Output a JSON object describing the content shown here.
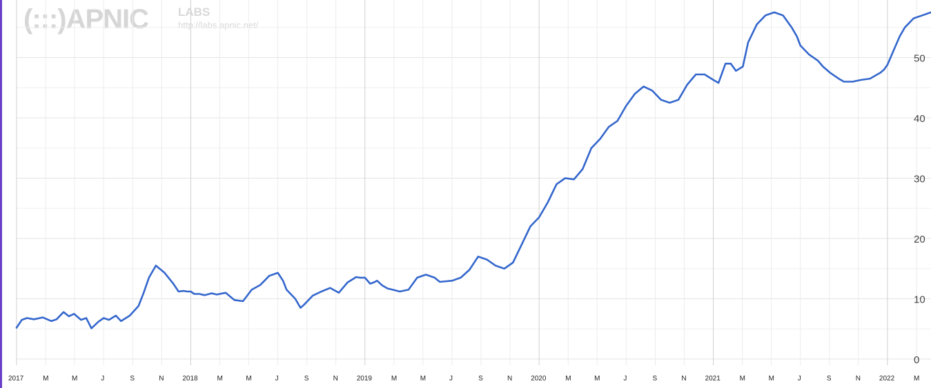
{
  "watermark": {
    "logo": "(:::)APNIC",
    "labs": "LABS",
    "url": "http://labs.apnic.net/"
  },
  "colors": {
    "line": "#3366cc",
    "grid": "#e6e6e6",
    "major_grid": "#cccccc",
    "border": "#6a3fc8"
  },
  "chart_data": {
    "type": "line",
    "title": "",
    "xlabel": "",
    "ylabel": "",
    "xlim": [
      2017.0,
      2022.25
    ],
    "ylim": [
      0,
      57
    ],
    "grid": true,
    "x_ticks": [
      {
        "value": 2017.0,
        "label": "2017"
      },
      {
        "value": 2017.167,
        "label": "M"
      },
      {
        "value": 2017.333,
        "label": "M"
      },
      {
        "value": 2017.5,
        "label": "J"
      },
      {
        "value": 2017.667,
        "label": "S"
      },
      {
        "value": 2017.833,
        "label": "N"
      },
      {
        "value": 2018.0,
        "label": "2018"
      },
      {
        "value": 2018.167,
        "label": "M"
      },
      {
        "value": 2018.333,
        "label": "M"
      },
      {
        "value": 2018.5,
        "label": "J"
      },
      {
        "value": 2018.667,
        "label": "S"
      },
      {
        "value": 2018.833,
        "label": "N"
      },
      {
        "value": 2019.0,
        "label": "2019"
      },
      {
        "value": 2019.167,
        "label": "M"
      },
      {
        "value": 2019.333,
        "label": "M"
      },
      {
        "value": 2019.5,
        "label": "J"
      },
      {
        "value": 2019.667,
        "label": "S"
      },
      {
        "value": 2019.833,
        "label": "N"
      },
      {
        "value": 2020.0,
        "label": "2020"
      },
      {
        "value": 2020.167,
        "label": "M"
      },
      {
        "value": 2020.333,
        "label": "M"
      },
      {
        "value": 2020.5,
        "label": "J"
      },
      {
        "value": 2020.667,
        "label": "S"
      },
      {
        "value": 2020.833,
        "label": "N"
      },
      {
        "value": 2021.0,
        "label": "2021"
      },
      {
        "value": 2021.167,
        "label": "M"
      },
      {
        "value": 2021.333,
        "label": "M"
      },
      {
        "value": 2021.5,
        "label": "J"
      },
      {
        "value": 2021.667,
        "label": "S"
      },
      {
        "value": 2021.833,
        "label": "N"
      },
      {
        "value": 2022.0,
        "label": "2022"
      },
      {
        "value": 2022.167,
        "label": "M"
      }
    ],
    "y_ticks": [
      {
        "value": 0,
        "label": "0"
      },
      {
        "value": 10,
        "label": "10"
      },
      {
        "value": 20,
        "label": "20"
      },
      {
        "value": 30,
        "label": "30"
      },
      {
        "value": 40,
        "label": "40"
      },
      {
        "value": 50,
        "label": "50"
      }
    ],
    "series": [
      {
        "x": [
          2017.0,
          2017.03,
          2017.06,
          2017.1,
          2017.15,
          2017.2,
          2017.23,
          2017.27,
          2017.3,
          2017.33,
          2017.37,
          2017.4,
          2017.43,
          2017.47,
          2017.5,
          2017.53,
          2017.57,
          2017.6,
          2017.65,
          2017.7,
          2017.73,
          2017.76,
          2017.8,
          2017.85,
          2017.9,
          2017.93,
          2017.96,
          2017.98,
          2018.0,
          2018.02,
          2018.05,
          2018.08,
          2018.12,
          2018.15,
          2018.2,
          2018.25,
          2018.3,
          2018.35,
          2018.4,
          2018.45,
          2018.5,
          2018.53,
          2018.55,
          2018.6,
          2018.63,
          2018.65,
          2018.7,
          2018.75,
          2018.8,
          2018.85,
          2018.9,
          2018.95,
          2018.97,
          2019.0,
          2019.03,
          2019.05,
          2019.07,
          2019.1,
          2019.13,
          2019.16,
          2019.2,
          2019.25,
          2019.3,
          2019.35,
          2019.4,
          2019.43,
          2019.5,
          2019.55,
          2019.6,
          2019.65,
          2019.7,
          2019.75,
          2019.8,
          2019.85,
          2019.9,
          2019.95,
          2020.0,
          2020.05,
          2020.1,
          2020.15,
          2020.2,
          2020.25,
          2020.3,
          2020.35,
          2020.4,
          2020.45,
          2020.5,
          2020.55,
          2020.6,
          2020.65,
          2020.7,
          2020.75,
          2020.8,
          2020.85,
          2020.9,
          2020.95,
          2021.0,
          2021.03,
          2021.07,
          2021.1,
          2021.13,
          2021.17,
          2021.2,
          2021.25,
          2021.3,
          2021.35,
          2021.4,
          2021.45,
          2021.48,
          2021.5,
          2021.55,
          2021.6,
          2021.63,
          2021.67,
          2021.72,
          2021.75,
          2021.8,
          2021.85,
          2021.9,
          2021.93,
          2021.96,
          2021.98,
          2022.0,
          2022.04,
          2022.07,
          2022.1,
          2022.15,
          2022.2,
          2022.25
        ],
        "y": [
          5.2,
          6.5,
          6.8,
          6.6,
          6.9,
          6.3,
          6.6,
          7.8,
          7.1,
          7.5,
          6.5,
          6.8,
          5.1,
          6.2,
          6.8,
          6.5,
          7.2,
          6.3,
          7.2,
          8.8,
          11.0,
          13.5,
          15.5,
          14.3,
          12.5,
          11.2,
          11.3,
          11.2,
          11.2,
          10.8,
          10.8,
          10.6,
          10.9,
          10.7,
          11.0,
          9.8,
          9.6,
          11.5,
          12.3,
          13.8,
          14.3,
          13.0,
          11.5,
          10.0,
          8.5,
          9.0,
          10.5,
          11.2,
          11.8,
          11.0,
          12.7,
          13.6,
          13.5,
          13.5,
          12.5,
          12.7,
          13.0,
          12.2,
          11.7,
          11.5,
          11.2,
          11.5,
          13.5,
          14.0,
          13.5,
          12.8,
          13.0,
          13.5,
          14.8,
          17.0,
          16.5,
          15.5,
          15.0,
          16.0,
          19.0,
          22.0,
          23.5,
          26.0,
          29.0,
          30.0,
          29.8,
          31.5,
          35.0,
          36.5,
          38.5,
          39.5,
          42.0,
          44.0,
          45.2,
          44.5,
          43.0,
          42.5,
          43.0,
          45.5,
          47.2,
          47.2,
          46.3,
          45.8,
          49.0,
          49.0,
          47.8,
          48.5,
          52.5,
          55.5,
          57.0,
          57.5,
          57.0,
          55.0,
          53.5,
          52.0,
          50.5,
          49.5,
          48.5,
          47.5,
          46.5,
          46.0,
          46.0,
          46.3,
          46.5,
          47.0,
          47.5,
          48.0,
          48.8,
          51.5,
          53.5,
          55.0,
          56.5,
          57.0,
          57.5
        ]
      }
    ]
  }
}
